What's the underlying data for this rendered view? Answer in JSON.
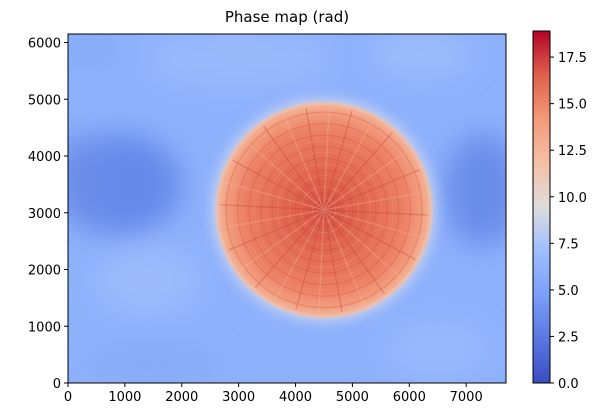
{
  "chart_data": {
    "type": "heatmap",
    "title": "Phase map (rad)",
    "xlabel": "",
    "ylabel": "",
    "xlim": [
      0,
      7700
    ],
    "ylim": [
      0,
      6150
    ],
    "x_ticks": [
      0,
      1000,
      2000,
      3000,
      4000,
      5000,
      6000,
      7000
    ],
    "y_ticks": [
      0,
      1000,
      2000,
      3000,
      4000,
      5000,
      6000
    ],
    "colorbar": {
      "range": [
        0,
        18.9
      ],
      "ticks": [
        "0.0",
        "2.5",
        "5.0",
        "7.5",
        "10.0",
        "12.5",
        "15.0",
        "17.5"
      ],
      "tick_values": [
        0,
        2.5,
        5,
        7.5,
        10,
        12.5,
        15,
        17.5
      ],
      "colormap": "coolwarm"
    },
    "grid": false,
    "features": {
      "disk_center": [
        4500,
        3050
      ],
      "disk_radius": 1900,
      "disk_peak_value": 17.0,
      "disk_edge_value": 11.5,
      "background_value_range": [
        1.0,
        4.5
      ],
      "radial_spokes": 28
    }
  }
}
